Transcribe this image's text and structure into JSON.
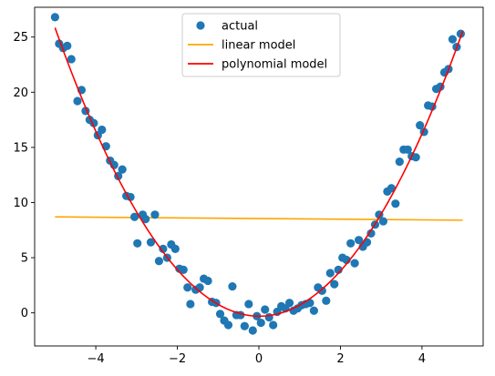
{
  "chart_data": {
    "type": "scatter",
    "title": "",
    "xlabel": "",
    "ylabel": "",
    "xlim": [
      -5.5,
      5.5
    ],
    "ylim": [
      -3.0,
      27.7
    ],
    "xticks": [
      -4,
      -2,
      0,
      2,
      4
    ],
    "yticks": [
      0,
      5,
      10,
      15,
      20,
      25
    ],
    "xtick_labels": [
      "−4",
      "−2",
      "0",
      "2",
      "4"
    ],
    "ytick_labels": [
      "0",
      "5",
      "10",
      "15",
      "20",
      "25"
    ],
    "grid": false,
    "legend": {
      "placement": "top-center",
      "entries": [
        "actual",
        "linear model",
        "polynomial model"
      ]
    },
    "colors": {
      "actual": "#1f77b4",
      "linear model": "#ffa500",
      "polynomial model": "#ff0000"
    },
    "series": [
      {
        "name": "actual",
        "type": "scatter",
        "points": [
          [
            -5.0,
            26.8
          ],
          [
            -4.9,
            24.4
          ],
          [
            -4.8,
            24.0
          ],
          [
            -4.7,
            24.2
          ],
          [
            -4.6,
            23.0
          ],
          [
            -4.45,
            19.2
          ],
          [
            -4.35,
            20.2
          ],
          [
            -4.25,
            18.3
          ],
          [
            -4.15,
            17.5
          ],
          [
            -4.05,
            17.2
          ],
          [
            -3.95,
            16.1
          ],
          [
            -3.85,
            16.6
          ],
          [
            -3.75,
            15.1
          ],
          [
            -3.65,
            13.8
          ],
          [
            -3.55,
            13.4
          ],
          [
            -3.45,
            12.4
          ],
          [
            -3.35,
            13.0
          ],
          [
            -3.25,
            10.6
          ],
          [
            -3.15,
            10.5
          ],
          [
            -3.05,
            8.7
          ],
          [
            -2.98,
            6.3
          ],
          [
            -2.85,
            8.9
          ],
          [
            -2.78,
            8.5
          ],
          [
            -2.65,
            6.4
          ],
          [
            -2.55,
            8.9
          ],
          [
            -2.45,
            4.7
          ],
          [
            -2.35,
            5.8
          ],
          [
            -2.25,
            5.0
          ],
          [
            -2.15,
            6.2
          ],
          [
            -2.05,
            5.8
          ],
          [
            -1.95,
            4.0
          ],
          [
            -1.85,
            3.9
          ],
          [
            -1.75,
            2.3
          ],
          [
            -1.68,
            0.8
          ],
          [
            -1.55,
            2.1
          ],
          [
            -1.45,
            2.3
          ],
          [
            -1.35,
            3.1
          ],
          [
            -1.25,
            2.9
          ],
          [
            -1.15,
            1.0
          ],
          [
            -1.05,
            0.9
          ],
          [
            -0.95,
            -0.1
          ],
          [
            -0.85,
            -0.7
          ],
          [
            -0.75,
            -1.1
          ],
          [
            -0.65,
            2.4
          ],
          [
            -0.55,
            -0.2
          ],
          [
            -0.45,
            -0.2
          ],
          [
            -0.35,
            -1.2
          ],
          [
            -0.25,
            0.8
          ],
          [
            -0.15,
            -1.6
          ],
          [
            -0.05,
            -0.3
          ],
          [
            0.05,
            -0.9
          ],
          [
            0.15,
            0.3
          ],
          [
            0.25,
            -0.4
          ],
          [
            0.35,
            -1.1
          ],
          [
            0.45,
            0.1
          ],
          [
            0.55,
            0.6
          ],
          [
            0.65,
            0.4
          ],
          [
            0.75,
            0.9
          ],
          [
            0.85,
            0.2
          ],
          [
            0.95,
            0.4
          ],
          [
            1.05,
            0.7
          ],
          [
            1.15,
            0.8
          ],
          [
            1.25,
            0.9
          ],
          [
            1.35,
            0.2
          ],
          [
            1.45,
            2.3
          ],
          [
            1.55,
            2.0
          ],
          [
            1.65,
            1.1
          ],
          [
            1.75,
            3.6
          ],
          [
            1.85,
            2.6
          ],
          [
            1.95,
            3.9
          ],
          [
            2.05,
            5.0
          ],
          [
            2.15,
            4.8
          ],
          [
            2.25,
            6.3
          ],
          [
            2.35,
            4.5
          ],
          [
            2.45,
            6.6
          ],
          [
            2.55,
            6.0
          ],
          [
            2.65,
            6.4
          ],
          [
            2.75,
            7.2
          ],
          [
            2.85,
            8.0
          ],
          [
            2.95,
            8.9
          ],
          [
            3.05,
            8.3
          ],
          [
            3.15,
            11.0
          ],
          [
            3.25,
            11.3
          ],
          [
            3.35,
            9.9
          ],
          [
            3.45,
            13.7
          ],
          [
            3.55,
            14.8
          ],
          [
            3.65,
            14.8
          ],
          [
            3.75,
            14.2
          ],
          [
            3.85,
            14.1
          ],
          [
            3.95,
            17.0
          ],
          [
            4.05,
            16.4
          ],
          [
            4.15,
            18.8
          ],
          [
            4.25,
            18.7
          ],
          [
            4.35,
            20.3
          ],
          [
            4.45,
            20.5
          ],
          [
            4.55,
            21.8
          ],
          [
            4.65,
            22.1
          ],
          [
            4.75,
            24.8
          ],
          [
            4.85,
            24.1
          ],
          [
            4.95,
            25.3
          ]
        ]
      },
      {
        "name": "linear model",
        "type": "line",
        "x": [
          -5.0,
          5.0
        ],
        "y": [
          8.7,
          8.4
        ]
      },
      {
        "name": "polynomial model",
        "type": "line",
        "function": "y = 1.04*x^2 - 0.03*x - 0.3",
        "coefficients": [
          1.04,
          -0.03,
          -0.3
        ],
        "x_range": [
          -5.0,
          5.0
        ]
      }
    ]
  }
}
